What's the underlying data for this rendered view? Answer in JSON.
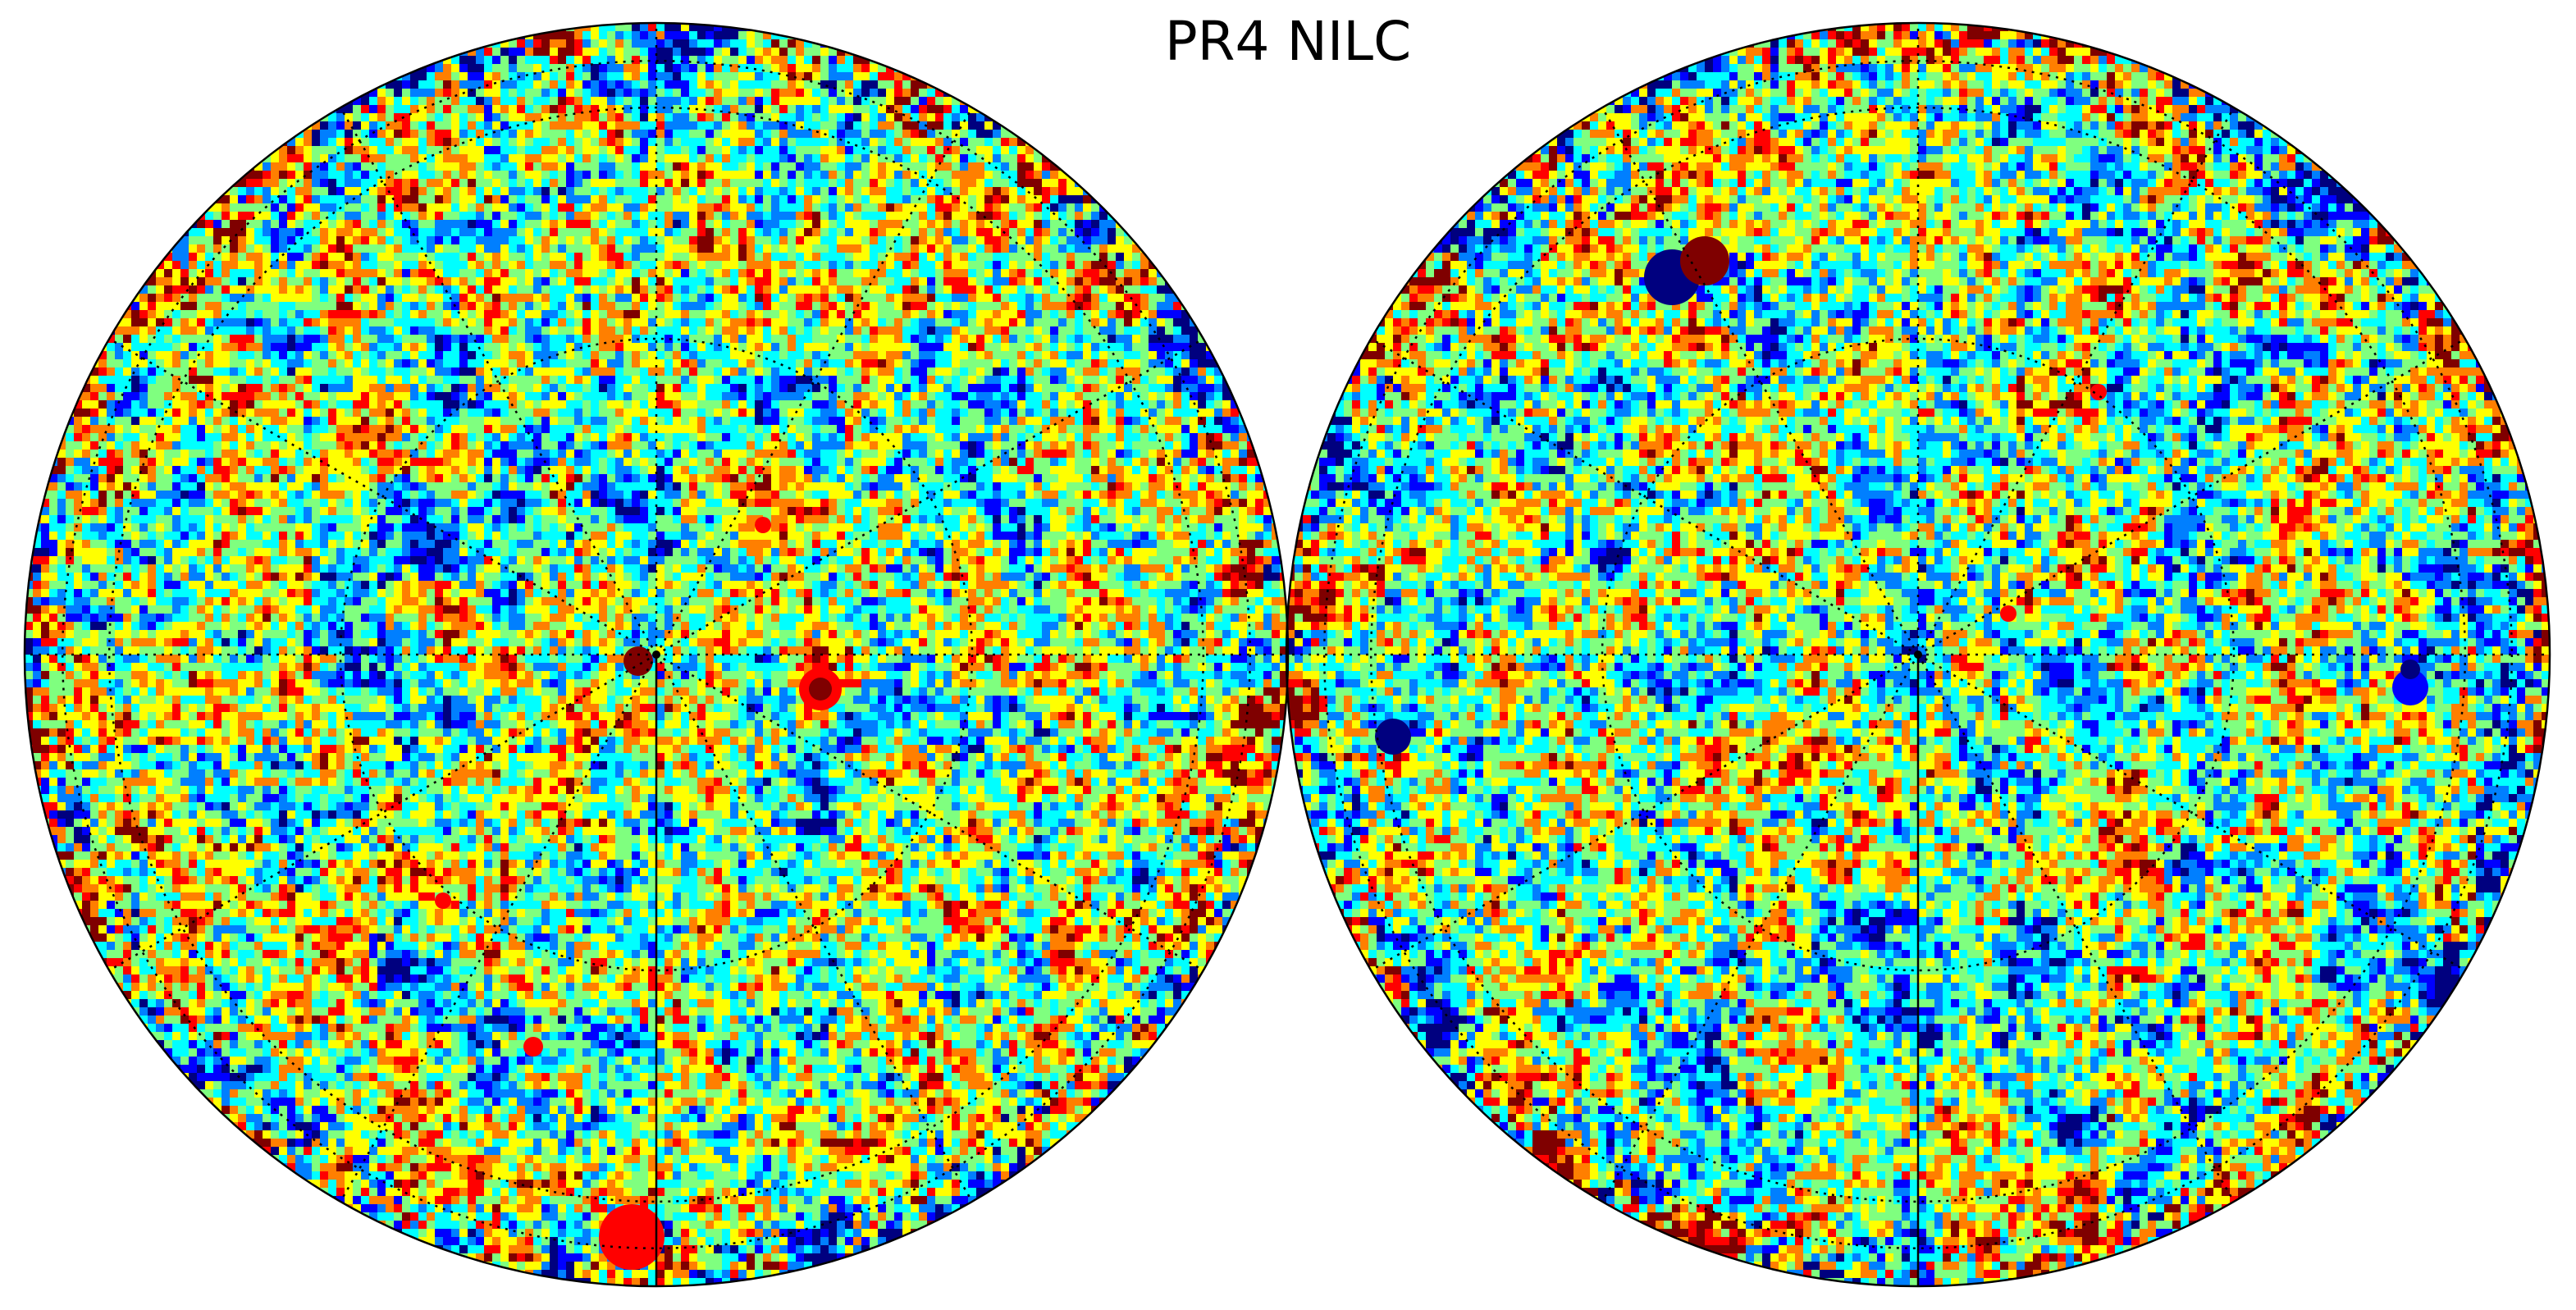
{
  "title": "PR4 NILC",
  "projection": "orthographic",
  "hemispheres": [
    "left",
    "right"
  ],
  "graticule": {
    "style": "dotted",
    "color": "#000000",
    "meridian_count": 12,
    "parallel_count": 3
  },
  "colormap": {
    "name": "jet",
    "colors": [
      "#00007f",
      "#0000ff",
      "#007fff",
      "#00ffff",
      "#7fff7f",
      "#ffff00",
      "#ff7f00",
      "#ff0000",
      "#7f0000"
    ]
  },
  "background_color": "#ffffff"
}
